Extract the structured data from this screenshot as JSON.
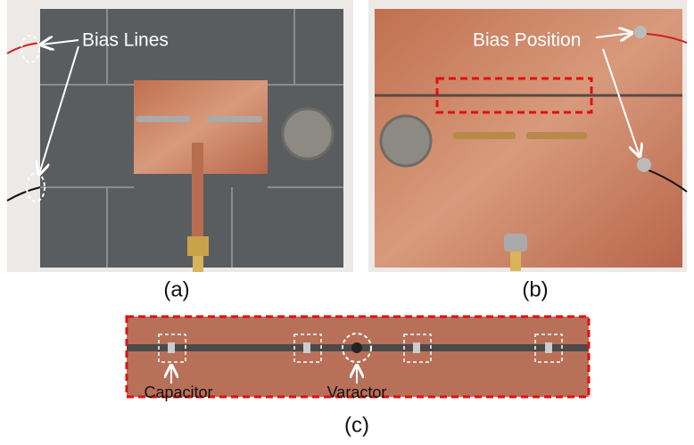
{
  "panel_a": {
    "annotation": "Bias Lines",
    "caption": "(a)"
  },
  "panel_b": {
    "annotation": "Bias Position",
    "caption": "(b)"
  },
  "panel_c": {
    "labels": [
      "Capacitor",
      "Varactor"
    ],
    "caption": "(c)"
  }
}
